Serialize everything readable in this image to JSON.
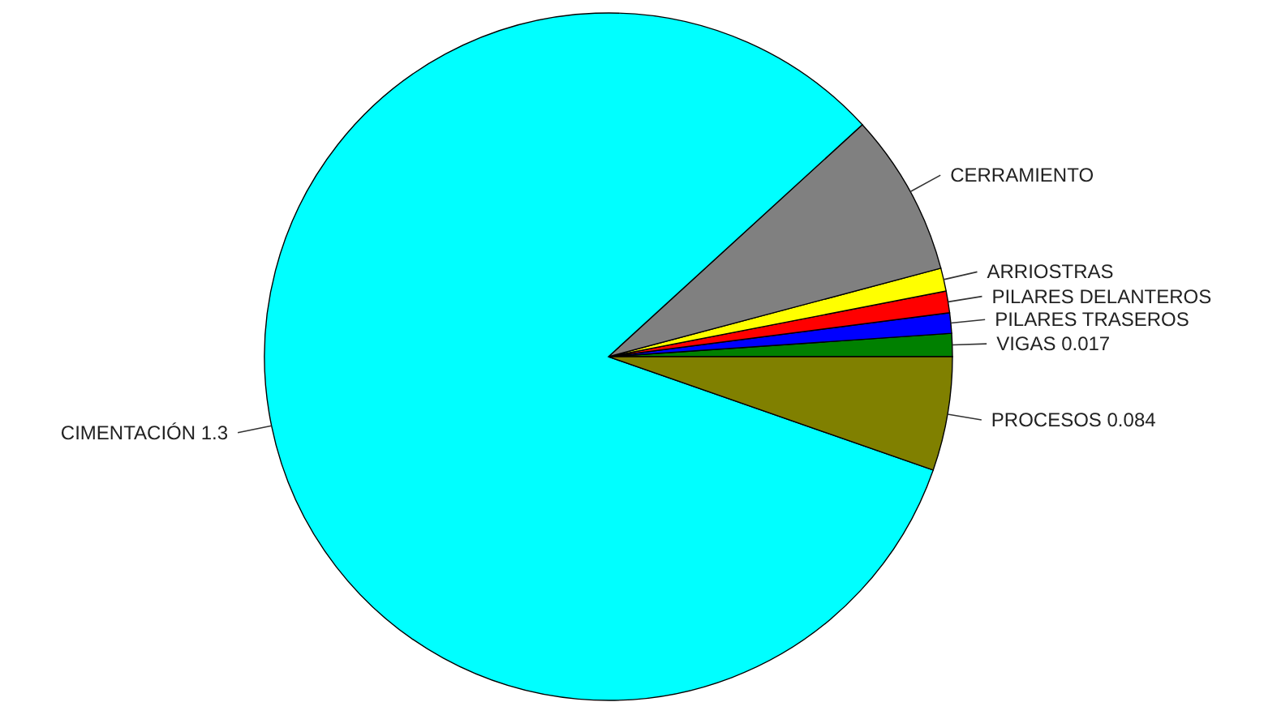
{
  "chart_data": {
    "type": "pie",
    "categories": [
      "VIGAS",
      "PILARES TRASEROS",
      "PILARES DELANTEROS",
      "ARRIOSTRAS",
      "CERRAMIENTO",
      "CIMENTACIÓN",
      "PROCESOS"
    ],
    "values": [
      0.017,
      0.015,
      0.016,
      0.017,
      0.12,
      1.3,
      0.084
    ],
    "value_labels": [
      "0.017",
      null,
      null,
      null,
      null,
      "1.3",
      "0.084"
    ],
    "colors": [
      "#008000",
      "#0000ff",
      "#ff0000",
      "#ffff00",
      "#808080",
      "#00ffff",
      "#808000"
    ]
  }
}
